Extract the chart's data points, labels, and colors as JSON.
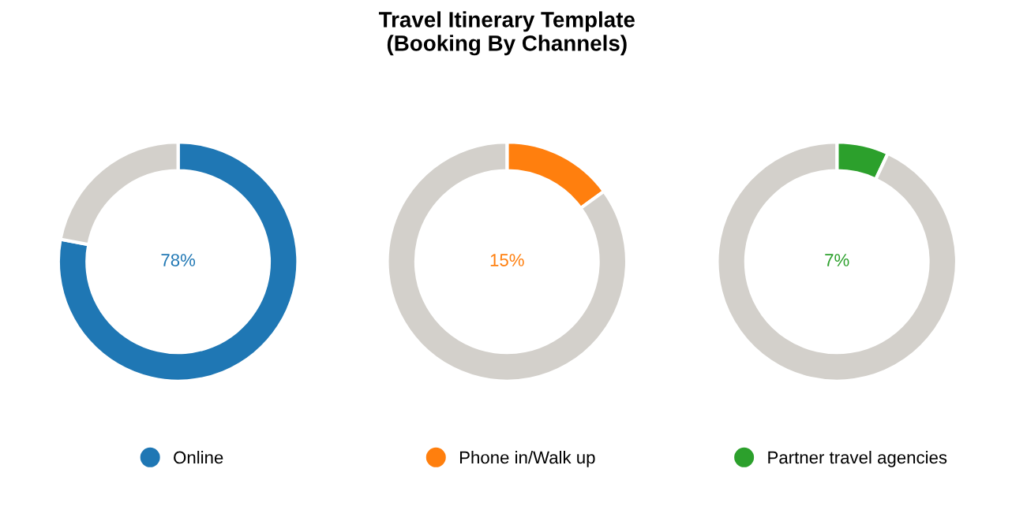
{
  "chart_data": [
    {
      "type": "donut",
      "categories": [
        "Online",
        null
      ],
      "values": [
        78,
        22
      ],
      "colors": [
        "#1f77b4",
        "#d3d0cb"
      ],
      "value_labels": [
        "78%",
        null
      ],
      "legend": "bottom"
    },
    {
      "type": "donut",
      "title": "Travel Itinerary Template\n(Booking By Channels)",
      "categories": [
        "Phone in/Walk up",
        null
      ],
      "values": [
        15,
        85
      ],
      "colors": [
        "#ff7f0e",
        "#d3d0cb"
      ],
      "value_labels": [
        "15%",
        null
      ],
      "legend": "bottom"
    },
    {
      "type": "donut",
      "categories": [
        "Partner travel agencies",
        null
      ],
      "values": [
        7,
        93
      ],
      "colors": [
        "#2ca02c",
        "#d3d0cb"
      ],
      "value_labels": [
        "7%",
        null
      ],
      "legend": "bottom"
    }
  ]
}
